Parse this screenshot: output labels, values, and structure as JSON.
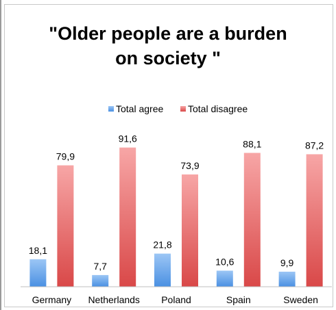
{
  "chart_data": {
    "type": "bar",
    "title": "\"Older people are a burden on society \"",
    "title_lines": [
      "\"Older people are a burden",
      "on society \""
    ],
    "categories": [
      "Germany",
      "Netherlands",
      "Poland",
      "Spain",
      "Sweden"
    ],
    "series": [
      {
        "name": "Total agree",
        "values": [
          18.1,
          7.7,
          21.8,
          10.6,
          9.9
        ],
        "labels": [
          "18,1",
          "7,7",
          "21,8",
          "10,6",
          "9,9"
        ],
        "color": "#5b9bd5"
      },
      {
        "name": "Total disagree",
        "values": [
          79.9,
          91.6,
          73.9,
          88.1,
          87.2
        ],
        "labels": [
          "79,9",
          "91,6",
          "73,9",
          "88,1",
          "87,2"
        ],
        "color": "#e05656"
      }
    ],
    "legend_position": "top",
    "grid": false,
    "ylim": [
      0,
      100
    ]
  }
}
